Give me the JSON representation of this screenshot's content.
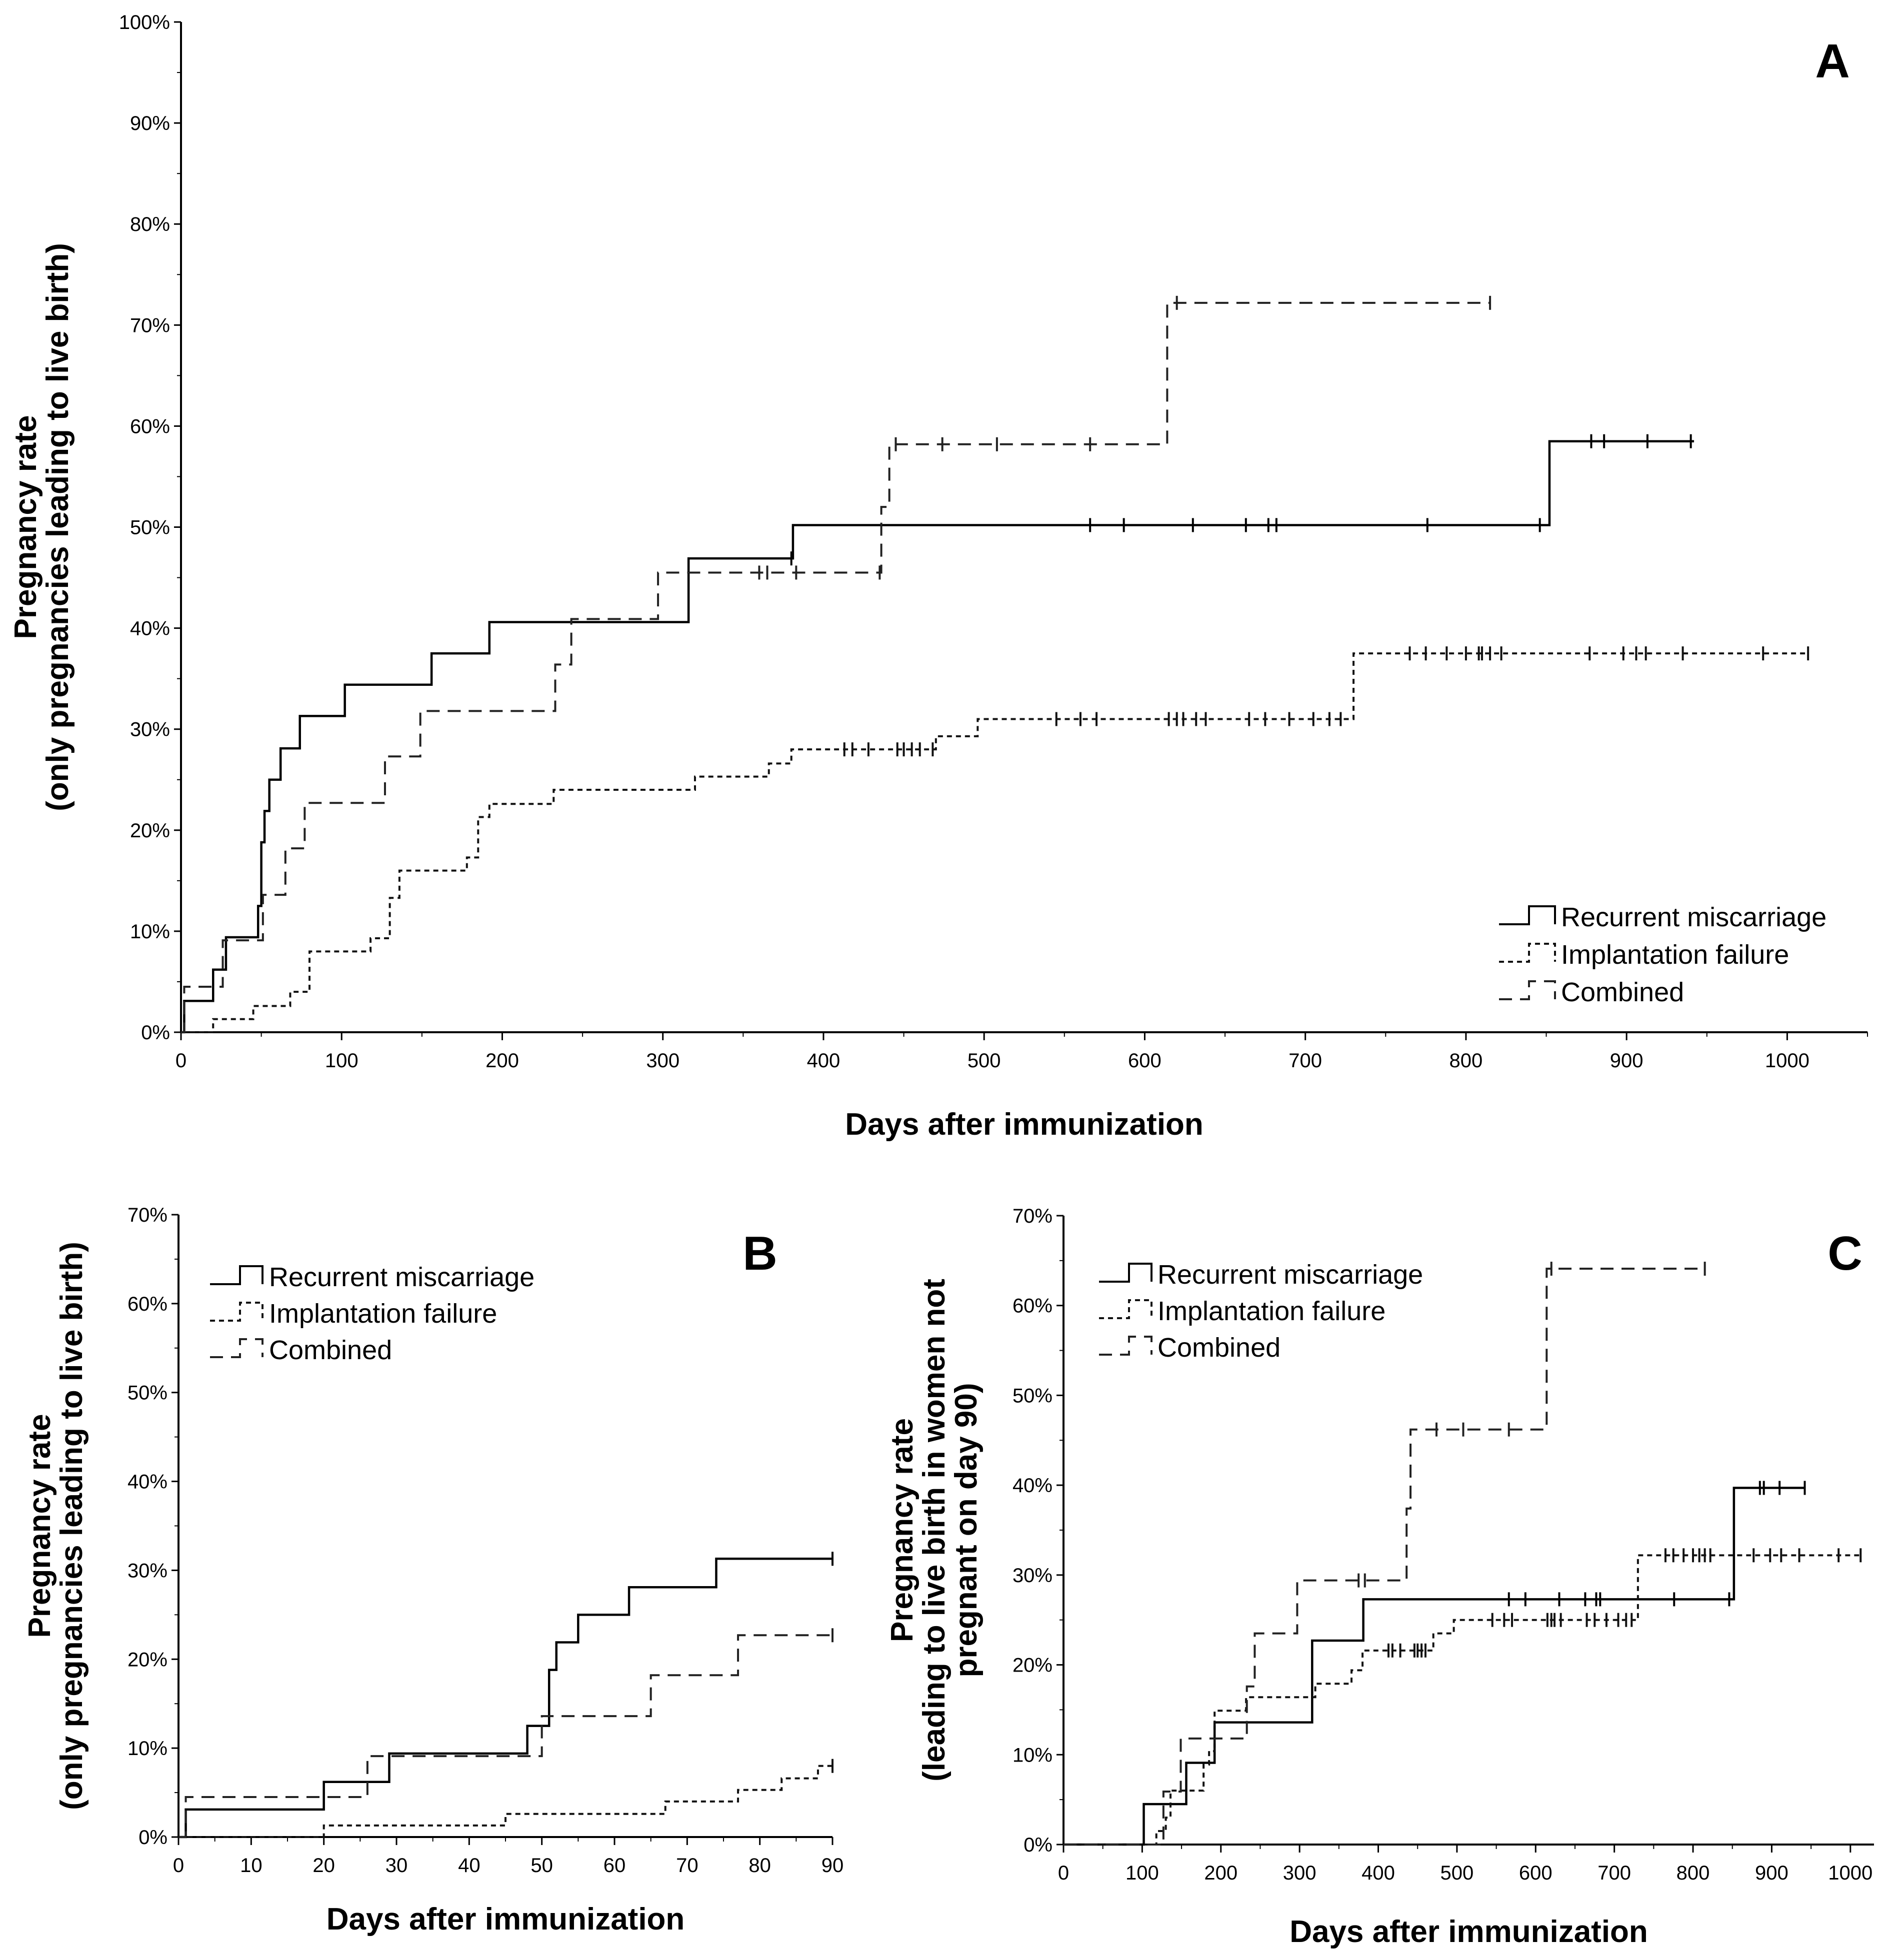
{
  "chart_data": [
    {
      "id": "A",
      "type": "line",
      "step": true,
      "panel_label": "A",
      "ylabel_lines": [
        "Pregnancy rate",
        "(only pregnancies leading to live birth)"
      ],
      "xlabel": "Days after immunization",
      "xlim": [
        0,
        1050
      ],
      "ylim": [
        0,
        100
      ],
      "xticks": [
        "0",
        "100",
        "200",
        "300",
        "400",
        "500",
        "600",
        "700",
        "800",
        "900",
        "1000"
      ],
      "yticks": [
        "0%",
        "10%",
        "20%",
        "30%",
        "40%",
        "50%",
        "60%",
        "70%",
        "80%",
        "90%",
        "100%"
      ],
      "legend": [
        "Recurrent miscarriage",
        "Implantation failure",
        "Combined"
      ],
      "legend_position": "bottom-right",
      "series": [
        {
          "name": "Recurrent miscarriage",
          "style": "solid",
          "x": [
            0,
            2,
            20,
            28,
            48,
            50,
            52,
            55,
            62,
            74,
            102,
            156,
            192,
            316,
            381,
            852,
            942
          ],
          "y": [
            0,
            3.1,
            6.2,
            9.4,
            12.5,
            18.8,
            21.9,
            25,
            28.1,
            31.3,
            34.4,
            37.5,
            40.6,
            46.9,
            50.2,
            58.5,
            58.5
          ],
          "censored_x": [
            380,
            566,
            587,
            630,
            663,
            677,
            682,
            776,
            846,
            878,
            886,
            913,
            940
          ]
        },
        {
          "name": "Implantation failure",
          "style": "dotted",
          "x": [
            0,
            20,
            45,
            68,
            80,
            118,
            130,
            136,
            178,
            185,
            192,
            232,
            320,
            366,
            380,
            470,
            496,
            730,
            1013
          ],
          "y": [
            0,
            1.3,
            2.6,
            4,
            8,
            9.3,
            13.3,
            16,
            17.3,
            21.3,
            22.6,
            24,
            25.3,
            26.6,
            28,
            29.3,
            31,
            37.5,
            37.5
          ],
          "censored_x": [
            413,
            418,
            428,
            446,
            450,
            455,
            460,
            468,
            545,
            560,
            570,
            615,
            620,
            624,
            632,
            638,
            665,
            675,
            690,
            705,
            715,
            722,
            765,
            775,
            788,
            800,
            808,
            810,
            815,
            822,
            877,
            898,
            906,
            912,
            935,
            985,
            1013
          ]
        },
        {
          "name": "Combined",
          "style": "dashed",
          "x": [
            0,
            2,
            26,
            51,
            65,
            77,
            127,
            149,
            233,
            243,
            297,
            381,
            436,
            441,
            614,
            815
          ],
          "y": [
            0,
            4.5,
            9.1,
            13.6,
            18.2,
            22.7,
            27.3,
            31.8,
            36.4,
            40.9,
            45.5,
            45.5,
            52,
            58.2,
            72.2,
            72.2
          ],
          "censored_x": [
            360,
            365,
            383,
            435,
            445,
            474,
            508,
            566,
            620,
            815
          ]
        }
      ]
    },
    {
      "id": "B",
      "type": "line",
      "step": true,
      "panel_label": "B",
      "ylabel_lines": [
        "Pregnancy rate",
        "(only pregnancies leading to live birth)"
      ],
      "xlabel": "Days after immunization",
      "xlim": [
        0,
        90
      ],
      "ylim": [
        0,
        70
      ],
      "xticks": [
        "0",
        "10",
        "20",
        "30",
        "40",
        "50",
        "60",
        "70",
        "80",
        "90"
      ],
      "yticks": [
        "0%",
        "10%",
        "20%",
        "30%",
        "40%",
        "50%",
        "60%",
        "70%"
      ],
      "legend": [
        "Recurrent miscarriage",
        "Implantation failure",
        "Combined"
      ],
      "legend_position": "top-left",
      "series": [
        {
          "name": "Recurrent miscarriage",
          "style": "solid",
          "x": [
            0,
            1,
            20,
            29,
            48,
            51,
            52,
            55,
            62,
            74,
            90
          ],
          "y": [
            0,
            3.1,
            6.2,
            9.4,
            12.5,
            18.8,
            21.9,
            25,
            28.1,
            31.3,
            31.3
          ],
          "censored_x": [
            90
          ]
        },
        {
          "name": "Implantation failure",
          "style": "dotted",
          "x": [
            0,
            20,
            45,
            67,
            77,
            83,
            88,
            90
          ],
          "y": [
            0,
            1.3,
            2.6,
            4,
            5.3,
            6.6,
            8,
            8
          ],
          "censored_x": [
            90
          ]
        },
        {
          "name": "Combined",
          "style": "dashed",
          "x": [
            0,
            1,
            26,
            50,
            65,
            77,
            90
          ],
          "y": [
            0,
            4.5,
            9.1,
            13.6,
            18.2,
            22.7,
            22.7
          ],
          "censored_x": [
            90
          ]
        }
      ]
    },
    {
      "id": "C",
      "type": "line",
      "step": true,
      "panel_label": "C",
      "ylabel_lines": [
        "Pregnancy rate",
        "(leading to live birth in women not",
        "pregnant on day 90)"
      ],
      "xlabel": "Days after immunization",
      "xlim": [
        0,
        1030
      ],
      "ylim": [
        0,
        70
      ],
      "xticks": [
        "0",
        "100",
        "200",
        "300",
        "400",
        "500",
        "600",
        "700",
        "800",
        "900",
        "1000"
      ],
      "yticks": [
        "0%",
        "10%",
        "20%",
        "30%",
        "40%",
        "50%",
        "60%",
        "70%"
      ],
      "legend": [
        "Recurrent miscarriage",
        "Implantation failure",
        "Combined"
      ],
      "legend_position": "top-left",
      "series": [
        {
          "name": "Recurrent miscarriage",
          "style": "solid",
          "x": [
            0,
            102,
            156,
            192,
            316,
            381,
            852,
            942
          ],
          "y": [
            0,
            4.5,
            9.1,
            13.6,
            22.7,
            27.3,
            39.7,
            39.7
          ],
          "censored_x": [
            566,
            587,
            630,
            663,
            677,
            682,
            776,
            846,
            885,
            890,
            910,
            942
          ]
        },
        {
          "name": "Implantation failure",
          "style": "dotted",
          "x": [
            0,
            118,
            130,
            136,
            178,
            185,
            192,
            232,
            320,
            366,
            380,
            470,
            496,
            730,
            1013
          ],
          "y": [
            0,
            1.5,
            3,
            6,
            8.9,
            10.4,
            14.9,
            16.4,
            17.9,
            19.4,
            21.6,
            23.5,
            25,
            32.2,
            32.2
          ],
          "censored_x": [
            413,
            418,
            428,
            446,
            450,
            455,
            460,
            545,
            560,
            570,
            615,
            620,
            624,
            632,
            665,
            675,
            690,
            705,
            715,
            722,
            765,
            775,
            788,
            800,
            808,
            815,
            822,
            877,
            898,
            912,
            935,
            985,
            1013
          ]
        },
        {
          "name": "Combined",
          "style": "dashed",
          "x": [
            0,
            127,
            149,
            233,
            243,
            297,
            381,
            436,
            441,
            614,
            815
          ],
          "y": [
            0,
            5.9,
            11.8,
            17.6,
            23.5,
            29.4,
            29.4,
            37.4,
            46.2,
            64.1,
            64.1
          ],
          "censored_x": [
            375,
            383,
            474,
            508,
            566,
            620,
            815
          ]
        }
      ]
    }
  ]
}
